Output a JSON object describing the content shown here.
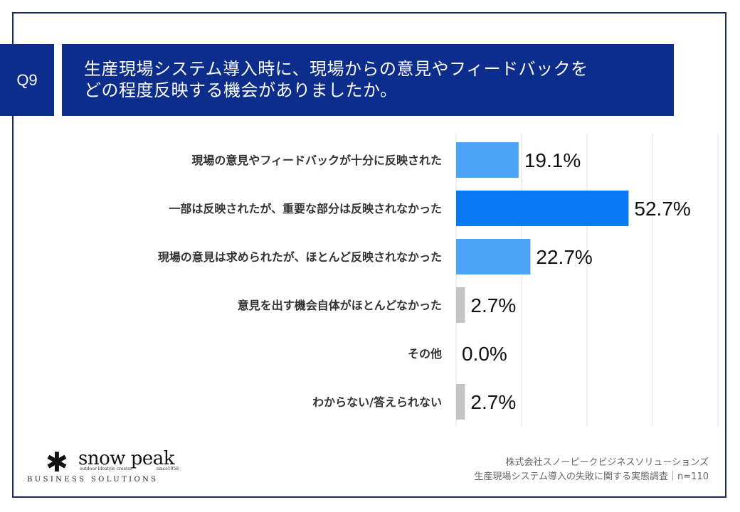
{
  "header": {
    "question_label": "Q9",
    "question_line1": "生産現場システム導入時に、現場からの意見やフィードバックを",
    "question_line2": "どの程度反映する機会がありましたか。"
  },
  "chart_data": {
    "type": "bar",
    "orientation": "horizontal",
    "categories": [
      "現場の意見やフィードバックが十分に反映された",
      "一部は反映されたが、重要な部分は反映されなかった",
      "現場の意見は求められたが、ほとんど反映されなかった",
      "意見を出す機会自体がほとんどなかった",
      "その他",
      "わからない/答えられない"
    ],
    "values": [
      19.1,
      52.7,
      22.7,
      2.7,
      0.0,
      2.7
    ],
    "value_labels": [
      "19.1%",
      "52.7%",
      "22.7%",
      "2.7%",
      "0.0%",
      "2.7%"
    ],
    "bar_colors": [
      "#4ca3f7",
      "#0a78f2",
      "#4ca3f7",
      "#c4c4c4",
      "#c4c4c4",
      "#c4c4c4"
    ],
    "grid": true,
    "xlim": [
      0,
      80
    ],
    "title": "",
    "xlabel": "",
    "ylabel": ""
  },
  "brand": {
    "star": "✱",
    "name": "snow peak",
    "tagline": "outdoor lifestyle creator",
    "since": "since1958",
    "division": "BUSINESS SOLUTIONS"
  },
  "source": {
    "line1": "株式会社スノーピークビジネスソリューションズ",
    "line2": "生産現場システム導入の失敗に関する実態調査｜n=110"
  },
  "colors": {
    "header_bg": "#0d2d8c",
    "frame": "#1b2a5c",
    "gridline": "#e3e3e3"
  }
}
